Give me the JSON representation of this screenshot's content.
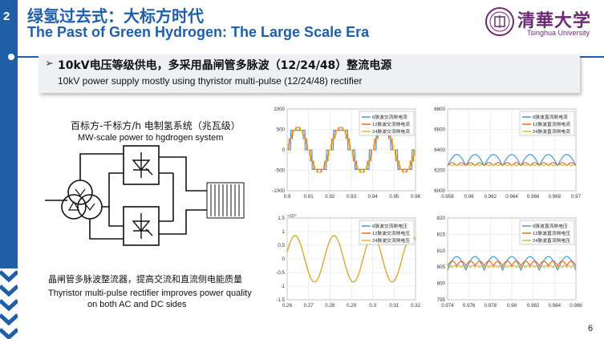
{
  "slide": {
    "number": "2",
    "page": "6",
    "accent_color": "#1f5fa8",
    "title_zh": "绿氢过去式：大标方时代",
    "title_en": "The Past of Green Hydrogen: The Large Scale Era"
  },
  "logo": {
    "name_zh": "清華大学",
    "name_en": "Tsinghua University",
    "color": "#6b2a73"
  },
  "bullet": {
    "arrow": "➢",
    "main": "10kV电压等级供电，多采用晶闸管多脉波（12/24/48）整流电源",
    "sub": "10kV power supply mostly using thyristor multi-pulse (12/24/48) rectifier"
  },
  "diagram": {
    "label_zh": "百标方-千标方/h 电制氢系统（兆瓦级）",
    "label_en": "MW-scale power to hgdrogen system",
    "caption_zh": "晶闸管多脉波整流器，提高交流和直流侧电能质量",
    "caption_en_line1": "Thyristor multi-pulse rectifier improves power quality",
    "caption_en_line2": "on both AC and DC sides"
  },
  "chart_data": [
    {
      "type": "line",
      "x": [
        0.9,
        0.96
      ],
      "xticks": [
        "0.9",
        "0.91",
        "0.92",
        "0.93",
        "0.94",
        "0.95",
        "0.96"
      ],
      "yticks": [
        "1000",
        "500",
        "0",
        "-500",
        "-1000"
      ],
      "ylim": [
        -1000,
        1000
      ],
      "amplitude": 550,
      "periods": 3,
      "series": [
        {
          "name": "6脉波交流侧电流",
          "color": "#3b8fd1",
          "steps": 6
        },
        {
          "name": "12脉波交流侧电流",
          "color": "#e06020",
          "steps": 12
        },
        {
          "name": "24脉波交流侧电流",
          "color": "#e0b020",
          "steps": 24
        }
      ]
    },
    {
      "type": "line",
      "xticks": [
        "0.958",
        "0.96",
        "0.962",
        "0.964",
        "0.966",
        "0.968",
        "0.97"
      ],
      "yticks": [
        "6800",
        "6600",
        "6400",
        "6200",
        "6000"
      ],
      "ylim": [
        6000,
        6800
      ],
      "series": [
        {
          "name": "6脉波直流侧电流",
          "color": "#3b8fd1",
          "mean": 6300,
          "ripple": 110,
          "cycles": 7
        },
        {
          "name": "12脉波直流侧电流",
          "color": "#e06020",
          "mean": 6260,
          "ripple": 30,
          "cycles": 14
        },
        {
          "name": "24脉波直流侧电流",
          "color": "#e0b020",
          "mean": 6250,
          "ripple": 12,
          "cycles": 28
        }
      ]
    },
    {
      "type": "line",
      "exponent": "×10⁴",
      "xticks": [
        "0.26",
        "0.27",
        "0.28",
        "0.29",
        "0.3",
        "0.31",
        "0.32"
      ],
      "yticks": [
        "1.5",
        "1",
        "0.5",
        "0",
        "-0.5",
        "-1",
        "-1.5"
      ],
      "ylim": [
        -1.5,
        1.5
      ],
      "amplitude": 0.85,
      "periods": 3.3,
      "series": [
        {
          "name": "6脉波交流侧电压",
          "color": "#3b8fd1"
        },
        {
          "name": "12脉波交流侧电压",
          "color": "#e06020"
        },
        {
          "name": "24脉波交流侧电压",
          "color": "#e0b020"
        }
      ]
    },
    {
      "type": "line",
      "xticks": [
        "0.974",
        "0.976",
        "0.978",
        "0.98",
        "0.982",
        "0.984",
        "0.986"
      ],
      "yticks": [
        "820",
        "815",
        "810",
        "805",
        "800",
        "795"
      ],
      "ylim": [
        795,
        822
      ],
      "series": [
        {
          "name": "6脉波直流侧电压",
          "color": "#3b8fd1",
          "mean": 807,
          "ripple": 4.5,
          "cycles": 7
        },
        {
          "name": "12脉波直流侧电压",
          "color": "#e06020",
          "mean": 807,
          "ripple": 1.5,
          "cycles": 14
        },
        {
          "name": "24脉波直流侧电压",
          "color": "#e0b020",
          "mean": 806,
          "ripple": 0.6,
          "cycles": 28
        }
      ]
    }
  ]
}
